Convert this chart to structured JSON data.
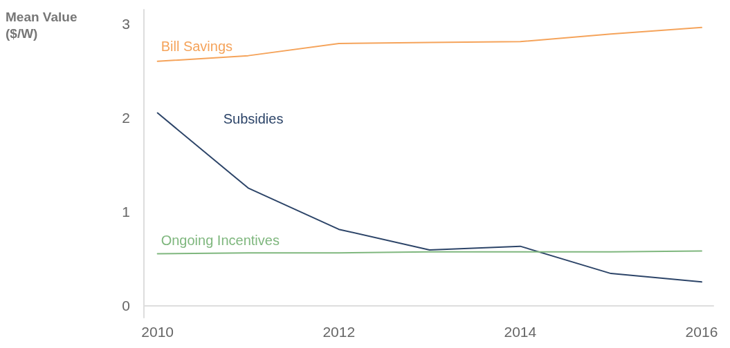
{
  "chart_data": {
    "type": "line",
    "ylabel": "Mean Value ($/W)",
    "x": [
      2010,
      2011,
      2012,
      2013,
      2014,
      2015,
      2016
    ],
    "xlim": [
      2009.85,
      2016.13
    ],
    "xticks": [
      2010,
      2012,
      2014,
      2016
    ],
    "ylim": [
      -0.13,
      3.15
    ],
    "yticks": [
      0,
      1,
      2,
      3
    ],
    "grid": false,
    "legend": false,
    "marker": "none",
    "line_style": "solid",
    "series": [
      {
        "name": "Bill Savings",
        "color": "#f5a35a",
        "values": [
          2.6,
          2.66,
          2.79,
          2.8,
          2.81,
          2.89,
          2.96
        ]
      },
      {
        "name": "Subsidies",
        "color": "#2c4468",
        "values": [
          2.05,
          1.25,
          0.81,
          0.59,
          0.63,
          0.34,
          0.25
        ]
      },
      {
        "name": "Ongoing Incentives",
        "color": "#7fb77e",
        "values": [
          0.55,
          0.56,
          0.56,
          0.57,
          0.57,
          0.57,
          0.58
        ]
      }
    ]
  }
}
